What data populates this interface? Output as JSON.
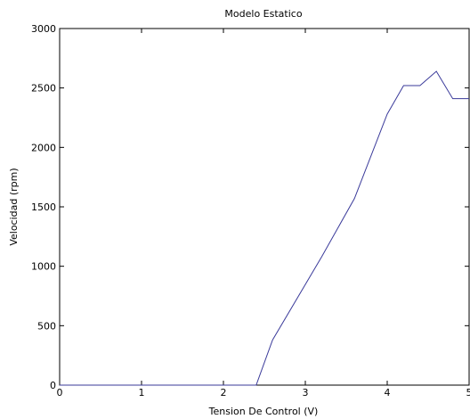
{
  "chart_data": {
    "type": "line",
    "title": "Modelo Estatico",
    "xlabel": "Tension De Control (V)",
    "ylabel": "Velocidad (rpm)",
    "xlim": [
      0,
      5
    ],
    "ylim": [
      0,
      3000
    ],
    "xticks": [
      0,
      1,
      2,
      3,
      4,
      5
    ],
    "yticks": [
      0,
      500,
      1000,
      1500,
      2000,
      2500,
      3000
    ],
    "xtick_labels": [
      "0",
      "1",
      "2",
      "3",
      "4",
      "5"
    ],
    "ytick_labels": [
      "0",
      "500",
      "1000",
      "1500",
      "2000",
      "2500",
      "3000"
    ],
    "grid": false,
    "legend": false,
    "series": [
      {
        "color": "#3a3a9a",
        "x": [
          0,
          2.4,
          2.6,
          3.2,
          3.6,
          4.0,
          4.2,
          4.4,
          4.6,
          4.8,
          5.0
        ],
        "y": [
          0,
          0,
          380,
          1080,
          1570,
          2280,
          2520,
          2520,
          2640,
          2410,
          2410
        ]
      }
    ]
  }
}
